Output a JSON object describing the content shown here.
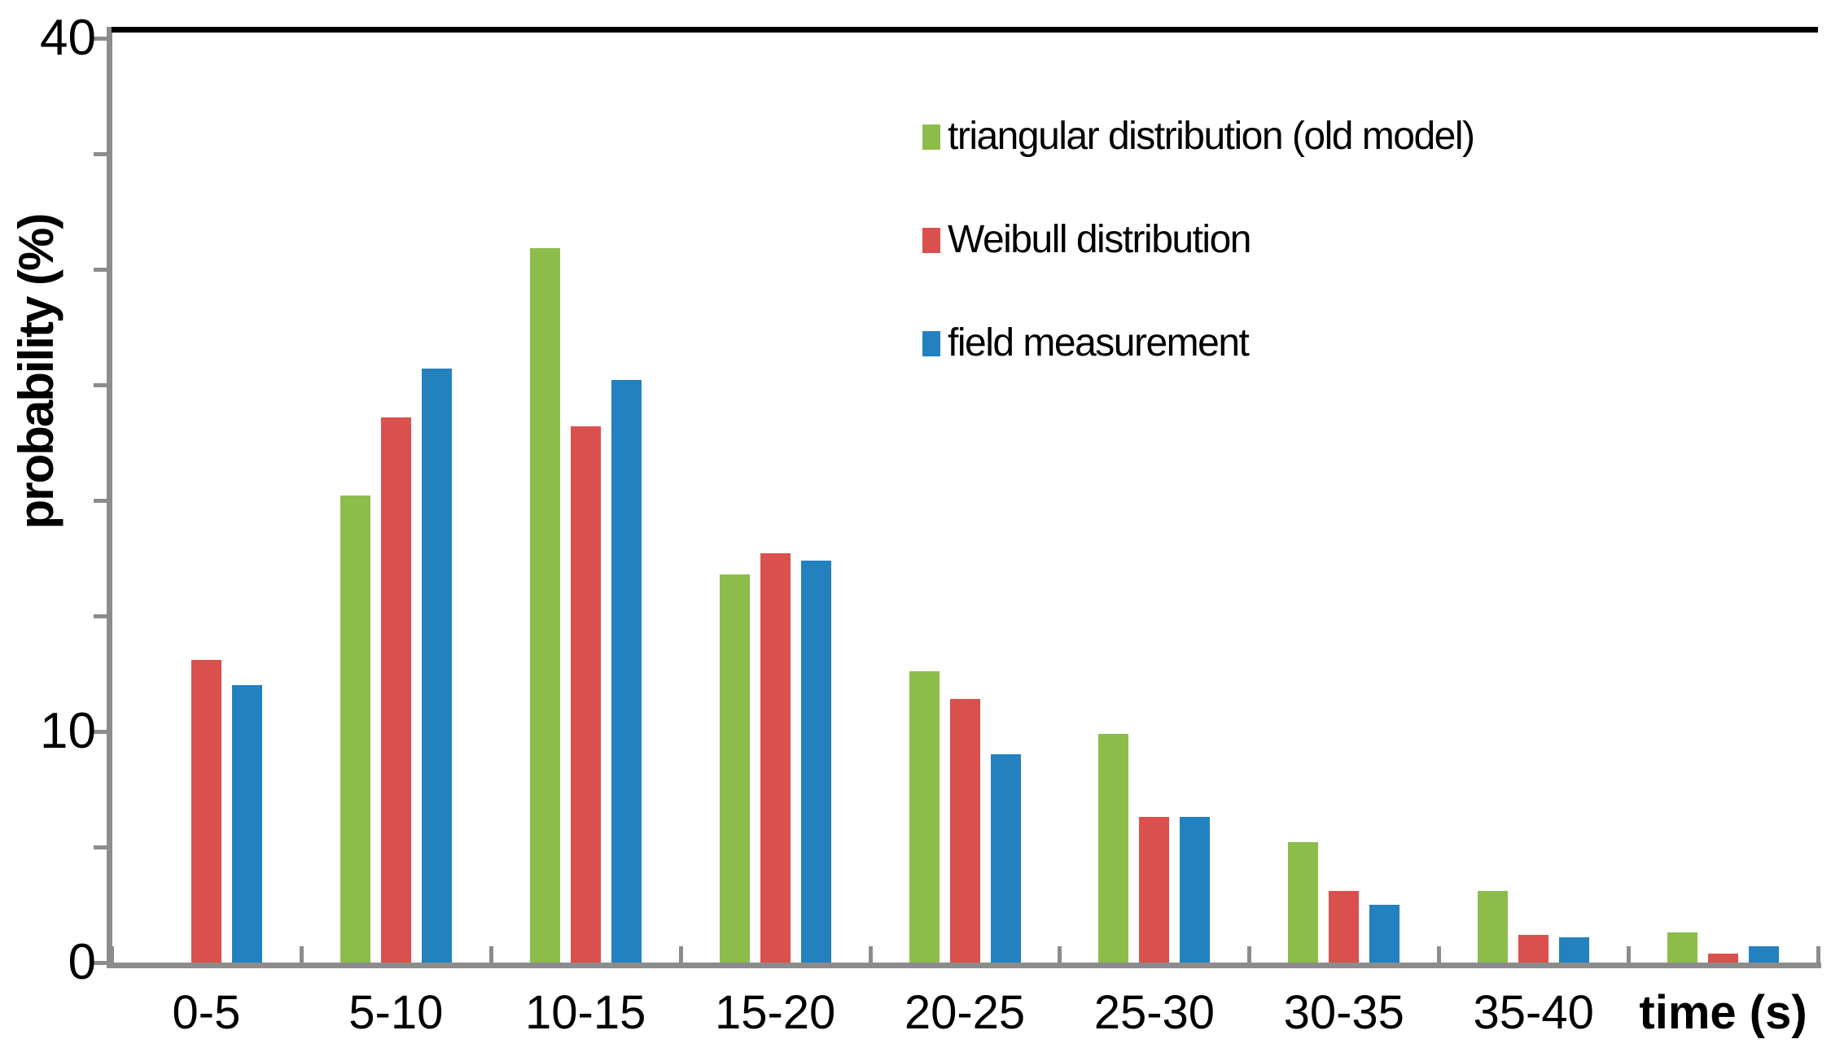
{
  "chart_data": {
    "type": "bar",
    "title": "",
    "xlabel": "time (s)",
    "ylabel": "probability (%)",
    "categories": [
      "0-5",
      "5-10",
      "10-15",
      "15-20",
      "20-25",
      "25-30",
      "30-35",
      "35-40",
      ""
    ],
    "series": [
      {
        "name": "triangular distribution (old model)",
        "color": "#8CBD4B",
        "values": [
          0,
          20.2,
          30.9,
          16.8,
          12.6,
          9.9,
          5.2,
          3.1,
          1.3
        ]
      },
      {
        "name": "Weibull distribution",
        "color": "#D9504D",
        "values": [
          13.1,
          23.6,
          23.2,
          17.7,
          11.4,
          6.3,
          3.1,
          1.2,
          0.4
        ]
      },
      {
        "name": "field measurement",
        "color": "#2381C0",
        "values": [
          12.0,
          25.7,
          25.2,
          17.4,
          9.0,
          6.3,
          2.5,
          1.1,
          0.7
        ]
      }
    ],
    "ylim": [
      0,
      40
    ],
    "ytick_step": 5,
    "ytick_labels": {
      "0": "0",
      "10": "10",
      "40": "40"
    },
    "xlabel_position": "last-category-slot",
    "legend_position": "top-right",
    "grid": false,
    "axis_color": "#8c8c8c",
    "top_border_color": "#000000"
  }
}
